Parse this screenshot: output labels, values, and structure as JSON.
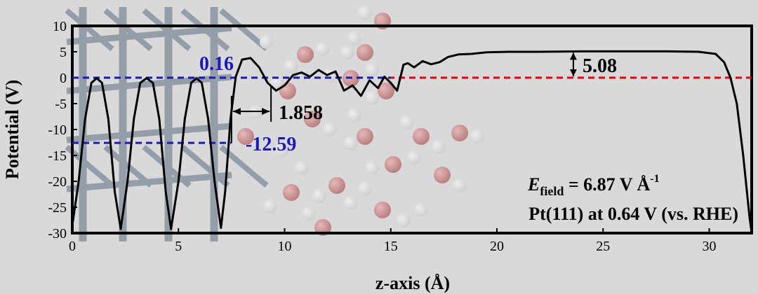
{
  "chart_data": {
    "type": "line",
    "xlabel": "z-axis (Å)",
    "ylabel": "Potential (V)",
    "xlim": [
      0,
      32
    ],
    "ylim": [
      -30,
      10
    ],
    "x_ticks": [
      0,
      5,
      10,
      15,
      20,
      25,
      30
    ],
    "y_ticks": [
      10,
      5,
      0,
      -5,
      -10,
      -15,
      -20,
      -25,
      -30
    ],
    "grid": false,
    "legend": "none",
    "series": [
      {
        "color": "#000000",
        "x": [
          0.0,
          0.3,
          0.6,
          0.9,
          1.15,
          1.4,
          1.7,
          2.0,
          2.28,
          2.6,
          2.9,
          3.2,
          3.5,
          3.8,
          4.1,
          4.4,
          4.65,
          5.0,
          5.3,
          5.6,
          5.85,
          6.1,
          6.4,
          6.7,
          7.0,
          7.2,
          7.45,
          7.7,
          8.0,
          8.4,
          8.8,
          9.2,
          9.6,
          10.0,
          10.4,
          10.8,
          11.2,
          11.6,
          12.0,
          12.4,
          12.8,
          13.2,
          13.6,
          14.0,
          14.4,
          14.7,
          15.0,
          15.3,
          15.6,
          15.8,
          16.1,
          16.5,
          16.9,
          17.3,
          17.7,
          18.2,
          18.8,
          19.5,
          20.5,
          22.0,
          24.0,
          26.0,
          28.0,
          29.5,
          30.3,
          30.7,
          31.0,
          31.3,
          31.6,
          31.9,
          32.0
        ],
        "y": [
          -28.5,
          -20,
          -8,
          -1,
          -0.1,
          -1,
          -8,
          -22,
          -29.2,
          -20,
          -8,
          -1,
          -0.1,
          -1,
          -8,
          -22,
          -29.2,
          -20,
          -8,
          -1,
          -0.1,
          -1,
          -8,
          -20,
          -29,
          -22,
          -8,
          0.2,
          3.5,
          3.8,
          2.0,
          -1.0,
          -2.5,
          -1.5,
          0.5,
          1.0,
          0.2,
          1.5,
          0.5,
          1.2,
          -2.5,
          -1.5,
          -3.5,
          -0.5,
          -2.0,
          0.2,
          -1.0,
          -2.5,
          2.5,
          2.8,
          2.0,
          3.2,
          2.6,
          3.0,
          4.0,
          4.5,
          4.6,
          4.9,
          5.0,
          5.0,
          5.08,
          5.08,
          5.08,
          5.0,
          4.6,
          3.0,
          0.0,
          -5,
          -15,
          -27,
          -30
        ]
      }
    ],
    "reference_lines": [
      {
        "y": 0,
        "color": "#e8000b",
        "style": "dashed"
      },
      {
        "y": -12.59,
        "x_to": 7.5,
        "color": "#1a1ab8",
        "style": "dashed"
      },
      {
        "y": 0,
        "x_to": 15,
        "color": "#1a1ab8",
        "style": "dashed"
      }
    ],
    "annotations": [
      {
        "text": "0.16",
        "color": "#1a1ab8"
      },
      {
        "text": "-12.59",
        "color": "#1a1ab8"
      },
      {
        "text": "1.858",
        "color": "#000000"
      },
      {
        "text": "5.08",
        "color": "#000000"
      }
    ],
    "panel_text": {
      "efield_symbol": "E",
      "efield_sub": "field",
      "efield_value": " = 6.87 V Å",
      "efield_exp": "-1",
      "condition": "Pt(111) at 0.64 V (vs. RHE)"
    }
  }
}
